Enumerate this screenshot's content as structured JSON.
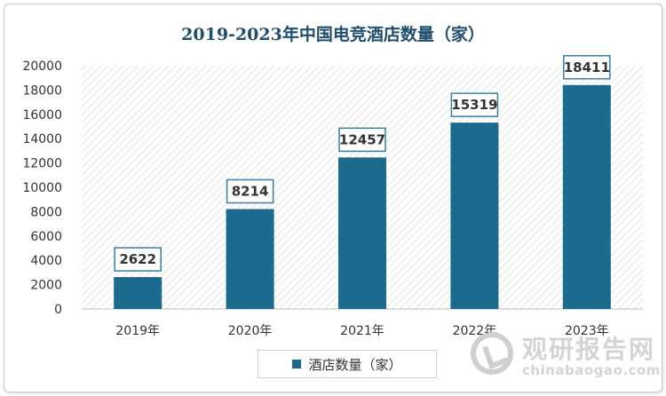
{
  "chart_data": {
    "type": "bar",
    "title": "2019-2023年中国电竞酒店数量（家）",
    "categories": [
      "2019年",
      "2020年",
      "2021年",
      "2022年",
      "2023年"
    ],
    "series": [
      {
        "name": "酒店数量（家）",
        "values": [
          2622,
          8214,
          12457,
          15319,
          18411
        ]
      }
    ],
    "ylim": [
      0,
      20000
    ],
    "yticks": [
      0,
      2000,
      4000,
      6000,
      8000,
      10000,
      12000,
      14000,
      16000,
      18000,
      20000
    ],
    "xlabel": "",
    "ylabel": "",
    "legend_position": "bottom",
    "grid": false
  },
  "colors": {
    "bar": "#1c6a8e",
    "title": "#1f4e6e",
    "label_border": "#3a7fa3"
  },
  "watermark": {
    "name_cn": "观研报告网",
    "url": "chinabaogao.com"
  }
}
